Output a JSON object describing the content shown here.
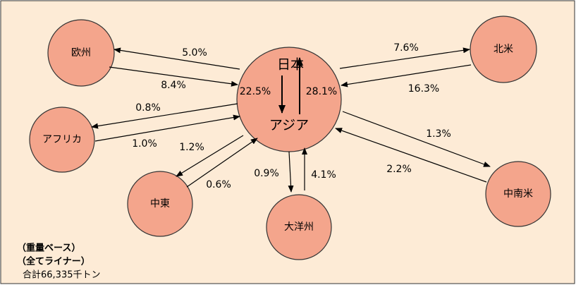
{
  "nodes": [
    {
      "label": "日本"
    },
    {
      "label": "アジア"
    },
    {
      "label": "欧州"
    },
    {
      "label": "北米"
    },
    {
      "label": "アフリカ"
    },
    {
      "label": "中東"
    },
    {
      "label": "大洋州"
    },
    {
      "label": "中南米"
    }
  ],
  "flows": [
    {
      "label": "22.5%"
    },
    {
      "label": "28.1%"
    },
    {
      "label": "5.0%"
    },
    {
      "label": "8.4%"
    },
    {
      "label": "7.6%"
    },
    {
      "label": "16.3%"
    },
    {
      "label": "0.8%"
    },
    {
      "label": "1.0%"
    },
    {
      "label": "1.2%"
    },
    {
      "label": "0.6%"
    },
    {
      "label": "0.9%"
    },
    {
      "label": "4.1%"
    },
    {
      "label": "1.3%"
    },
    {
      "label": "2.2%"
    }
  ],
  "notes": [
    "（重量ベース）",
    "（全てライナー）",
    "合計66,335千トン"
  ]
}
